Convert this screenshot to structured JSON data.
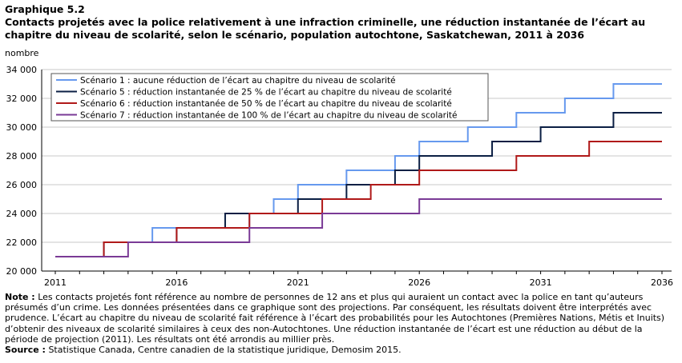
{
  "header": {
    "graph_number": "Graphique  5.2",
    "title": "Contacts projetés avec la police relativement à une infraction  criminelle, une réduction instantanée de l’écart au chapitre du niveau de scolarité, selon le scénario, population  autochtone, Saskatchewan, 2011 à 2036"
  },
  "chart_data": {
    "type": "line",
    "ylabel": "nombre",
    "xlabel": "",
    "x": [
      2011,
      2012,
      2013,
      2014,
      2015,
      2016,
      2017,
      2018,
      2019,
      2020,
      2021,
      2022,
      2023,
      2024,
      2025,
      2026,
      2027,
      2028,
      2029,
      2030,
      2031,
      2032,
      2033,
      2034,
      2035,
      2036
    ],
    "x_ticks": [
      "2011",
      "2016",
      "2021",
      "2026",
      "2031",
      "2036"
    ],
    "x_tick_values": [
      2011,
      2016,
      2021,
      2026,
      2031,
      2036
    ],
    "y_ticks": [
      "20 000",
      "22 000",
      "24 000",
      "26 000",
      "28 000",
      "30 000",
      "32 000",
      "34 000"
    ],
    "y_tick_values": [
      20000,
      22000,
      24000,
      26000,
      28000,
      30000,
      32000,
      34000
    ],
    "ylim": [
      20000,
      34000
    ],
    "xlim": [
      2011,
      2036
    ],
    "grid": "horizontal",
    "legend_position": "top-left",
    "series": [
      {
        "name": "Scénario 1 : aucune réduction de l’écart au chapitre du niveau de scolarité",
        "color": "#6699ee",
        "values": [
          21000,
          21000,
          22000,
          22000,
          23000,
          23000,
          23000,
          23000,
          24000,
          25000,
          26000,
          26000,
          27000,
          27000,
          28000,
          29000,
          29000,
          30000,
          30000,
          31000,
          31000,
          32000,
          32000,
          33000,
          33000,
          33000
        ]
      },
      {
        "name": "Scénario 5 : réduction instantanée de 25  % de l’écart au chapitre du niveau de scolarité",
        "color": "#0b1f44",
        "values": [
          21000,
          21000,
          22000,
          22000,
          22000,
          23000,
          23000,
          24000,
          24000,
          24000,
          25000,
          25000,
          26000,
          26000,
          27000,
          28000,
          28000,
          28000,
          29000,
          29000,
          30000,
          30000,
          30000,
          31000,
          31000,
          31000
        ]
      },
      {
        "name": "Scénario 6 : réduction instantanée de 50  % de l’écart au chapitre du niveau de scolarité",
        "color": "#b01919",
        "values": [
          21000,
          21000,
          22000,
          22000,
          22000,
          23000,
          23000,
          23000,
          24000,
          24000,
          24000,
          25000,
          25000,
          26000,
          26000,
          27000,
          27000,
          27000,
          27000,
          28000,
          28000,
          28000,
          29000,
          29000,
          29000,
          29000
        ]
      },
      {
        "name": "Scénario 7 : réduction instantanée de 100  % de l’écart au chapitre du niveau de scolarité",
        "color": "#7a3a96",
        "values": [
          21000,
          21000,
          21000,
          22000,
          22000,
          22000,
          22000,
          22000,
          23000,
          23000,
          23000,
          24000,
          24000,
          24000,
          24000,
          25000,
          25000,
          25000,
          25000,
          25000,
          25000,
          25000,
          25000,
          25000,
          25000,
          25000
        ]
      }
    ]
  },
  "footer": {
    "note_label": "Note :",
    "note_text": " Les contacts projetés font  référence au nombre de personnes de 12 ans et plus qui auraient un contact avec la police en tant qu’auteurs présumés d’un crime. Les données présentées dans ce graphique sont des projections. Par conséquent, les résultats doivent être interprétés avec prudence. L’écart au chapitre du niveau de scolarité fait référence à l’écart des probabilités pour les Autochtones (Premières Nations, Métis et Inuits) d’obtenir des niveaux de scolarité similaires à ceux des non-Autochtones. Une réduction instantanée de l’écart est une réduction au début de la période de projection (2011). Les résultats ont été arrondis au millier près.",
    "source_label": "Source :",
    "source_text": " Statistique  Canada, Centre canadien de la statistique juridique, Demosim 2015."
  }
}
